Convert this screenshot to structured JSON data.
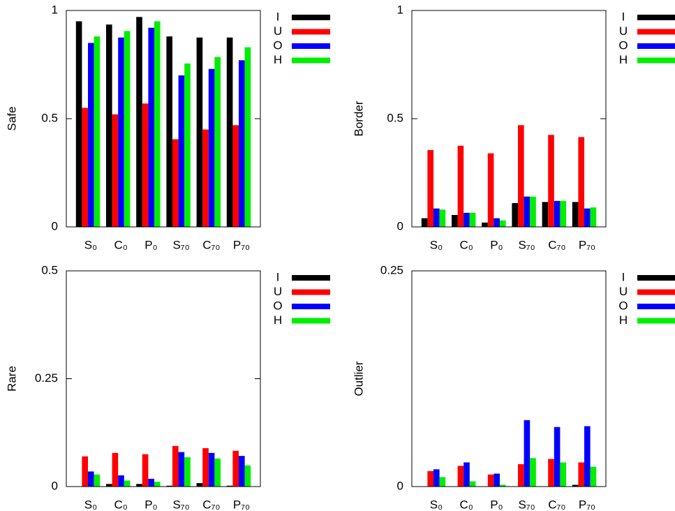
{
  "chart_data": [
    {
      "type": "bar",
      "ylabel": "Safe",
      "legend": "right",
      "categories": [
        "S₀",
        "C₀",
        "P₀",
        "S₇₀",
        "C₇₀",
        "P₇₀"
      ],
      "ylim": [
        0,
        1
      ],
      "yticks": [
        0,
        0.5,
        1
      ],
      "series": [
        {
          "name": "I",
          "color": "#000000",
          "values": [
            0.95,
            0.935,
            0.97,
            0.88,
            0.875,
            0.875
          ]
        },
        {
          "name": "U",
          "color": "#ff0000",
          "values": [
            0.55,
            0.52,
            0.57,
            0.405,
            0.45,
            0.47
          ]
        },
        {
          "name": "O",
          "color": "#0000ff",
          "values": [
            0.85,
            0.875,
            0.92,
            0.7,
            0.73,
            0.77
          ]
        },
        {
          "name": "H",
          "color": "#00ee00",
          "values": [
            0.88,
            0.905,
            0.95,
            0.755,
            0.785,
            0.83
          ]
        }
      ]
    },
    {
      "type": "bar",
      "ylabel": "Border",
      "legend": "right",
      "categories": [
        "S₀",
        "C₀",
        "P₀",
        "S₇₀",
        "C₇₀",
        "P₇₀"
      ],
      "ylim": [
        0,
        1
      ],
      "yticks": [
        0,
        0.5,
        1
      ],
      "series": [
        {
          "name": "I",
          "color": "#000000",
          "values": [
            0.04,
            0.055,
            0.02,
            0.11,
            0.115,
            0.115
          ]
        },
        {
          "name": "U",
          "color": "#ff0000",
          "values": [
            0.355,
            0.375,
            0.34,
            0.47,
            0.425,
            0.415
          ]
        },
        {
          "name": "O",
          "color": "#0000ff",
          "values": [
            0.085,
            0.065,
            0.04,
            0.14,
            0.12,
            0.085
          ]
        },
        {
          "name": "H",
          "color": "#00ee00",
          "values": [
            0.08,
            0.065,
            0.03,
            0.14,
            0.12,
            0.09
          ]
        }
      ]
    },
    {
      "type": "bar",
      "ylabel": "Rare",
      "legend": "right",
      "categories": [
        "S₀",
        "C₀",
        "P₀",
        "S₇₀",
        "C₇₀",
        "P₇₀"
      ],
      "ylim": [
        0,
        0.5
      ],
      "yticks": [
        0,
        0.25,
        0.5
      ],
      "series": [
        {
          "name": "I",
          "color": "#000000",
          "values": [
            0,
            0.006,
            0.006,
            0.002,
            0.008,
            0.002
          ]
        },
        {
          "name": "U",
          "color": "#ff0000",
          "values": [
            0.07,
            0.078,
            0.075,
            0.094,
            0.089,
            0.083
          ]
        },
        {
          "name": "O",
          "color": "#0000ff",
          "values": [
            0.035,
            0.026,
            0.018,
            0.08,
            0.078,
            0.071
          ]
        },
        {
          "name": "H",
          "color": "#00ee00",
          "values": [
            0.028,
            0.014,
            0.011,
            0.068,
            0.065,
            0.049
          ]
        }
      ]
    },
    {
      "type": "bar",
      "ylabel": "Outlier",
      "legend": "right",
      "categories": [
        "S₀",
        "C₀",
        "P₀",
        "S₇₀",
        "C₇₀",
        "P₇₀"
      ],
      "ylim": [
        0,
        0.25
      ],
      "yticks": [
        0,
        0.25
      ],
      "series": [
        {
          "name": "I",
          "color": "#000000",
          "values": [
            0,
            0,
            0,
            0,
            0,
            0.002
          ]
        },
        {
          "name": "U",
          "color": "#ff0000",
          "values": [
            0.018,
            0.024,
            0.014,
            0.026,
            0.032,
            0.028
          ]
        },
        {
          "name": "O",
          "color": "#0000ff",
          "values": [
            0.02,
            0.028,
            0.015,
            0.077,
            0.069,
            0.07
          ]
        },
        {
          "name": "H",
          "color": "#00ee00",
          "values": [
            0.011,
            0.006,
            0.002,
            0.033,
            0.028,
            0.023
          ]
        }
      ]
    }
  ]
}
